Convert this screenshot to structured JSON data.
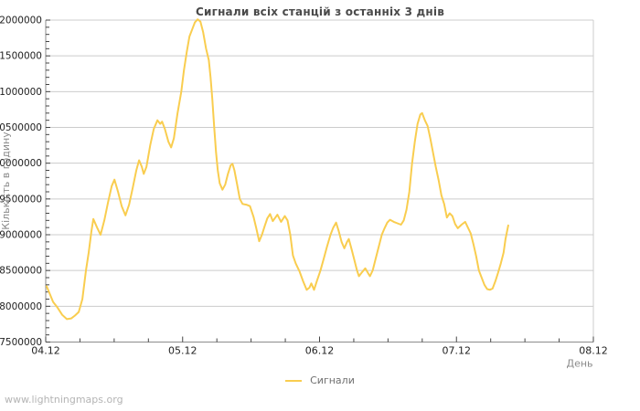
{
  "window": {
    "title": "Сигнали всіх станцій з останніх 3 днів"
  },
  "footer": {
    "url": "www.lightningmaps.org"
  },
  "chart_data": {
    "type": "line",
    "title": "Сигнали всіх станцій з останніх 3 днів",
    "xlabel": "День",
    "ylabel": "Кількість в годину",
    "x_tick_labels": [
      "04.12",
      "05.12",
      "06.12",
      "07.12",
      "08.12"
    ],
    "x_ticks_days": [
      0,
      1,
      2,
      3,
      4
    ],
    "xlim": [
      0,
      4
    ],
    "ylim": [
      7500000,
      12000000
    ],
    "y_tick_step": 500000,
    "y_minor_step": 100000,
    "x_minor_step_days": 0.25,
    "grid": "horizontal-only",
    "legend_position": "bottom-center",
    "colors": {
      "line": "#F9CD4F",
      "grid": "#cccccc",
      "frame": "#cccccc",
      "axis": "#8c8c8c",
      "tick": "#444444",
      "tick_label": "#222222",
      "title": "#4a4a4a",
      "axis_label": "#8a8a8a",
      "footer": "#b4b4b4",
      "background": "#ffffff"
    },
    "series": [
      {
        "name": "Сигнали",
        "color": "#F9CD4F",
        "points": [
          [
            0.007,
            8280000
          ],
          [
            0.054,
            8060000
          ],
          [
            0.087,
            7980000
          ],
          [
            0.12,
            7880000
          ],
          [
            0.154,
            7820000
          ],
          [
            0.187,
            7830000
          ],
          [
            0.214,
            7870000
          ],
          [
            0.241,
            7920000
          ],
          [
            0.268,
            8100000
          ],
          [
            0.294,
            8500000
          ],
          [
            0.314,
            8750000
          ],
          [
            0.334,
            9050000
          ],
          [
            0.348,
            9220000
          ],
          [
            0.375,
            9100000
          ],
          [
            0.401,
            9000000
          ],
          [
            0.428,
            9200000
          ],
          [
            0.455,
            9450000
          ],
          [
            0.482,
            9680000
          ],
          [
            0.502,
            9770000
          ],
          [
            0.528,
            9600000
          ],
          [
            0.555,
            9400000
          ],
          [
            0.582,
            9270000
          ],
          [
            0.609,
            9420000
          ],
          [
            0.635,
            9650000
          ],
          [
            0.662,
            9900000
          ],
          [
            0.682,
            10040000
          ],
          [
            0.702,
            9950000
          ],
          [
            0.716,
            9850000
          ],
          [
            0.736,
            9950000
          ],
          [
            0.763,
            10250000
          ],
          [
            0.789,
            10480000
          ],
          [
            0.816,
            10600000
          ],
          [
            0.836,
            10550000
          ],
          [
            0.85,
            10580000
          ],
          [
            0.87,
            10480000
          ],
          [
            0.896,
            10300000
          ],
          [
            0.916,
            10220000
          ],
          [
            0.936,
            10350000
          ],
          [
            0.963,
            10700000
          ],
          [
            0.99,
            11000000
          ],
          [
            1.01,
            11300000
          ],
          [
            1.03,
            11550000
          ],
          [
            1.05,
            11770000
          ],
          [
            1.07,
            11870000
          ],
          [
            1.09,
            11970000
          ],
          [
            1.11,
            12010000
          ],
          [
            1.13,
            11980000
          ],
          [
            1.15,
            11830000
          ],
          [
            1.171,
            11600000
          ],
          [
            1.191,
            11440000
          ],
          [
            1.204,
            11200000
          ],
          [
            1.217,
            10900000
          ],
          [
            1.231,
            10500000
          ],
          [
            1.244,
            10150000
          ],
          [
            1.257,
            9900000
          ],
          [
            1.271,
            9720000
          ],
          [
            1.291,
            9630000
          ],
          [
            1.311,
            9700000
          ],
          [
            1.331,
            9850000
          ],
          [
            1.351,
            9970000
          ],
          [
            1.364,
            9990000
          ],
          [
            1.378,
            9900000
          ],
          [
            1.398,
            9700000
          ],
          [
            1.418,
            9500000
          ],
          [
            1.438,
            9430000
          ],
          [
            1.465,
            9420000
          ],
          [
            1.492,
            9400000
          ],
          [
            1.518,
            9250000
          ],
          [
            1.538,
            9090000
          ],
          [
            1.559,
            8910000
          ],
          [
            1.579,
            9000000
          ],
          [
            1.599,
            9120000
          ],
          [
            1.619,
            9230000
          ],
          [
            1.639,
            9290000
          ],
          [
            1.659,
            9190000
          ],
          [
            1.692,
            9280000
          ],
          [
            1.719,
            9180000
          ],
          [
            1.746,
            9260000
          ],
          [
            1.766,
            9200000
          ],
          [
            1.786,
            9000000
          ],
          [
            1.806,
            8710000
          ],
          [
            1.826,
            8600000
          ],
          [
            1.853,
            8490000
          ],
          [
            1.88,
            8350000
          ],
          [
            1.906,
            8230000
          ],
          [
            1.926,
            8260000
          ],
          [
            1.94,
            8320000
          ],
          [
            1.96,
            8230000
          ],
          [
            1.98,
            8350000
          ],
          [
            2.007,
            8500000
          ],
          [
            2.033,
            8680000
          ],
          [
            2.054,
            8830000
          ],
          [
            2.08,
            9000000
          ],
          [
            2.1,
            9100000
          ],
          [
            2.121,
            9170000
          ],
          [
            2.14,
            9050000
          ],
          [
            2.161,
            8900000
          ],
          [
            2.181,
            8810000
          ],
          [
            2.201,
            8900000
          ],
          [
            2.214,
            8940000
          ],
          [
            2.234,
            8800000
          ],
          [
            2.254,
            8650000
          ],
          [
            2.274,
            8500000
          ],
          [
            2.288,
            8420000
          ],
          [
            2.308,
            8470000
          ],
          [
            2.334,
            8530000
          ],
          [
            2.355,
            8460000
          ],
          [
            2.368,
            8420000
          ],
          [
            2.388,
            8500000
          ],
          [
            2.408,
            8650000
          ],
          [
            2.435,
            8850000
          ],
          [
            2.455,
            9000000
          ],
          [
            2.475,
            9090000
          ],
          [
            2.495,
            9170000
          ],
          [
            2.515,
            9210000
          ],
          [
            2.542,
            9180000
          ],
          [
            2.569,
            9160000
          ],
          [
            2.595,
            9140000
          ],
          [
            2.615,
            9200000
          ],
          [
            2.635,
            9350000
          ],
          [
            2.656,
            9600000
          ],
          [
            2.676,
            10000000
          ],
          [
            2.696,
            10300000
          ],
          [
            2.716,
            10550000
          ],
          [
            2.736,
            10680000
          ],
          [
            2.749,
            10700000
          ],
          [
            2.769,
            10600000
          ],
          [
            2.789,
            10520000
          ],
          [
            2.809,
            10350000
          ],
          [
            2.829,
            10150000
          ],
          [
            2.849,
            9950000
          ],
          [
            2.87,
            9760000
          ],
          [
            2.89,
            9550000
          ],
          [
            2.91,
            9430000
          ],
          [
            2.93,
            9240000
          ],
          [
            2.95,
            9300000
          ],
          [
            2.97,
            9260000
          ],
          [
            2.99,
            9150000
          ],
          [
            3.01,
            9090000
          ],
          [
            3.037,
            9140000
          ],
          [
            3.064,
            9180000
          ],
          [
            3.084,
            9100000
          ],
          [
            3.104,
            9020000
          ],
          [
            3.124,
            8870000
          ],
          [
            3.144,
            8700000
          ],
          [
            3.164,
            8500000
          ],
          [
            3.184,
            8400000
          ],
          [
            3.204,
            8300000
          ],
          [
            3.224,
            8240000
          ],
          [
            3.244,
            8230000
          ],
          [
            3.264,
            8250000
          ],
          [
            3.284,
            8350000
          ],
          [
            3.304,
            8470000
          ],
          [
            3.324,
            8600000
          ],
          [
            3.344,
            8750000
          ],
          [
            3.358,
            8940000
          ],
          [
            3.378,
            9130000
          ]
        ]
      }
    ]
  }
}
